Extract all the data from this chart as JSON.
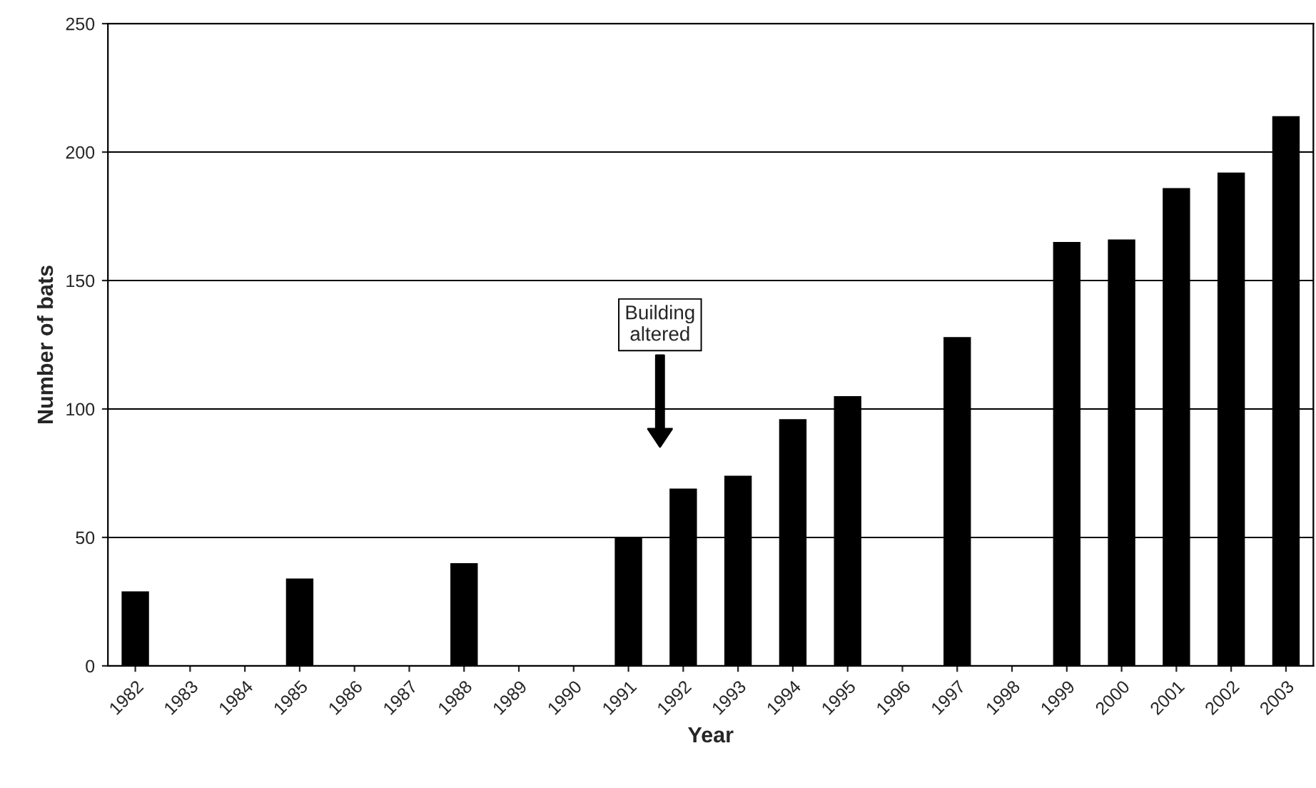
{
  "chart_data": {
    "type": "bar",
    "xlabel": "Year",
    "ylabel": "Number of bats",
    "categories": [
      "1982",
      "1983",
      "1984",
      "1985",
      "1986",
      "1987",
      "1988",
      "1989",
      "1990",
      "1991",
      "1992",
      "1993",
      "1994",
      "1995",
      "1996",
      "1997",
      "1998",
      "1999",
      "2000",
      "2001",
      "2002",
      "2003"
    ],
    "values": [
      29,
      null,
      null,
      34,
      null,
      null,
      40,
      null,
      null,
      50,
      69,
      74,
      96,
      105,
      null,
      128,
      null,
      165,
      166,
      186,
      192,
      214
    ],
    "color": "#000000",
    "ylim": [
      0,
      250
    ],
    "yticks": [
      0,
      50,
      100,
      150,
      200,
      250
    ],
    "grid": "y",
    "annotations": [
      "Building altered"
    ]
  }
}
